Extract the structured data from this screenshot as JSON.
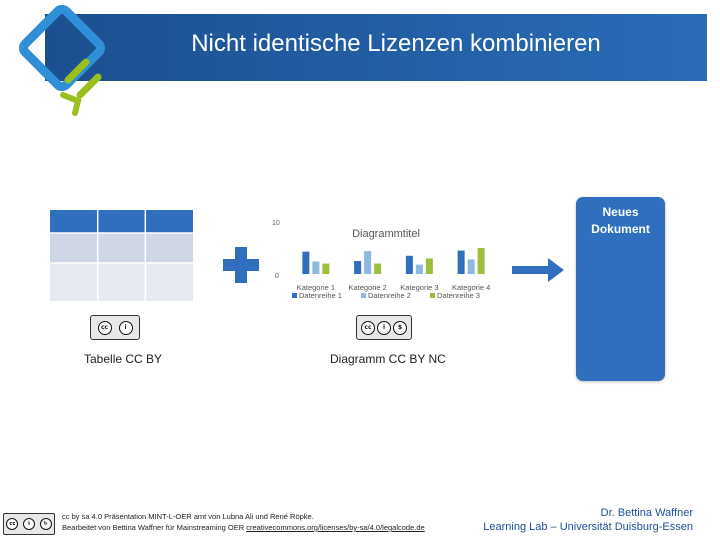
{
  "slide": {
    "title": "Nicht identische Lizenzen kombinieren"
  },
  "colors": {
    "header": "#1b4f8f",
    "accent_blue": "#2f6fbe",
    "logo_blue": "#2f8fd8",
    "logo_green": "#9bbf1d"
  },
  "left_item": {
    "label": "Tabelle CC BY",
    "license_icons": [
      "cc-icon",
      "by-icon"
    ]
  },
  "middle_item": {
    "label": "Diagramm CC BY NC",
    "license_icons": [
      "cc-icon",
      "by-icon",
      "nc-icon"
    ]
  },
  "chart_data": {
    "type": "bar",
    "title": "Diagrammtitel",
    "categories": [
      "Kategorie 1",
      "Kategorie 2",
      "Kategorie 3",
      "Kategorie 4"
    ],
    "series": [
      {
        "name": "Datenreihe 1",
        "values": [
          4.3,
          2.5,
          3.5,
          4.5
        ],
        "color": "#2f6fbe"
      },
      {
        "name": "Datenreihe 2",
        "values": [
          2.4,
          4.4,
          1.8,
          2.8
        ],
        "color": "#8fb8e0"
      },
      {
        "name": "Datenreihe 3",
        "values": [
          2,
          2,
          3,
          5
        ],
        "color": "#9bbf3c"
      }
    ],
    "ylim": [
      0,
      10
    ],
    "y_ticks": [
      "10",
      "0"
    ],
    "legend": "bottom"
  },
  "result": {
    "label_line1": "Neues",
    "label_line2": "Dokument"
  },
  "footer": {
    "line1": "cc by sa 4.0 Präsentation MINT-L-OER amt von Lubna Ali und René Röpke.",
    "line2_prefix": "Bearbeitet von Bettina Waffner für Mainstreaming OER",
    "line2_link": "creativecommons.org/licenses/by-sa/4.0/legalcode.de",
    "author": "Dr. Bettina Waffner",
    "institution": "Learning Lab – Universität Duisburg-Essen"
  }
}
